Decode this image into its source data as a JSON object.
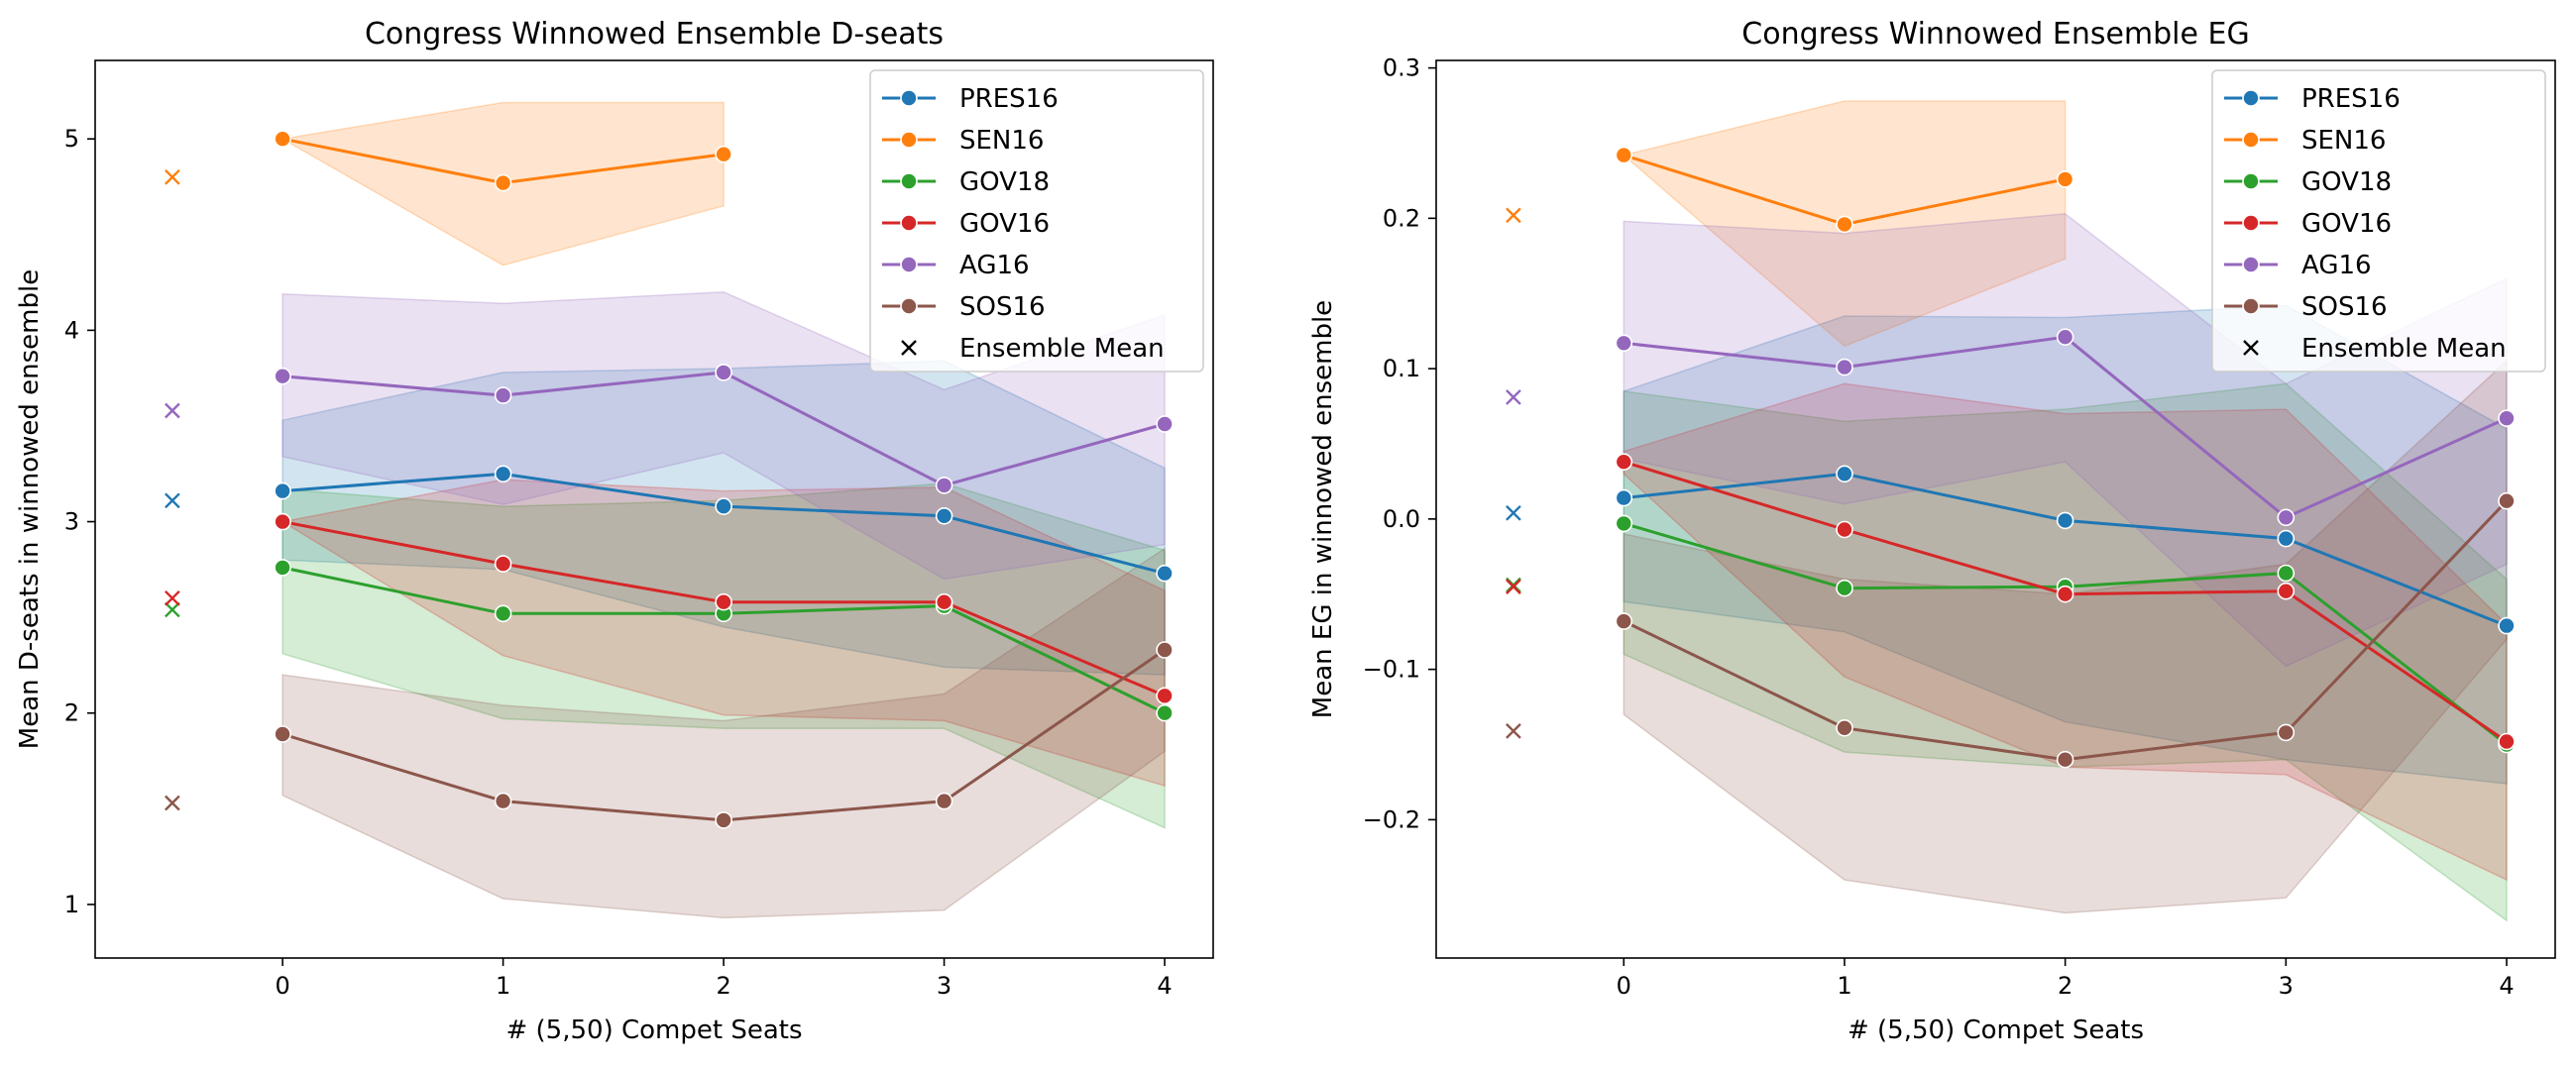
{
  "chart_data": [
    {
      "type": "line",
      "title": "Congress Winnowed Ensemble D-seats",
      "xlabel": "# (5,50) Compet Seats",
      "ylabel": "Mean D-seats in winnowed ensemble",
      "x": [
        0,
        1,
        2,
        3,
        4
      ],
      "xlim": [
        -0.85,
        4.22
      ],
      "ylim": [
        0.72,
        5.41
      ],
      "xticks": [
        0,
        1,
        2,
        3,
        4
      ],
      "yticks": [
        1,
        2,
        3,
        4,
        5
      ],
      "legend_position": "top-right",
      "legend_ensemble_label": "Ensemble Mean",
      "ensemble_x": -0.5,
      "series": [
        {
          "name": "PRES16",
          "color": "#1f77b4",
          "x": [
            0,
            1,
            2,
            3,
            4
          ],
          "values": [
            3.16,
            3.25,
            3.08,
            3.03,
            2.73
          ],
          "band_upper": [
            3.53,
            3.78,
            3.8,
            3.84,
            3.28
          ],
          "band_lower": [
            2.8,
            2.75,
            2.45,
            2.24,
            2.2
          ],
          "ensemble_mean": 3.11
        },
        {
          "name": "SEN16",
          "color": "#ff7f0e",
          "x": [
            0,
            1,
            2
          ],
          "values": [
            5.0,
            4.77,
            4.92
          ],
          "band_upper": [
            5.0,
            5.19,
            5.19
          ],
          "band_lower": [
            5.0,
            4.34,
            4.65
          ],
          "ensemble_mean": 4.8
        },
        {
          "name": "GOV18",
          "color": "#2ca02c",
          "x": [
            0,
            1,
            2,
            3,
            4
          ],
          "values": [
            2.76,
            2.52,
            2.52,
            2.56,
            2.0
          ],
          "band_upper": [
            3.17,
            3.08,
            3.11,
            3.2,
            2.85
          ],
          "band_lower": [
            2.31,
            1.97,
            1.92,
            1.92,
            1.4
          ],
          "ensemble_mean": 2.54
        },
        {
          "name": "GOV16",
          "color": "#d62728",
          "x": [
            0,
            1,
            2,
            3,
            4
          ],
          "values": [
            3.0,
            2.78,
            2.58,
            2.58,
            2.09
          ],
          "band_upper": [
            3.0,
            3.22,
            3.16,
            3.18,
            2.64
          ],
          "band_lower": [
            3.0,
            2.3,
            1.99,
            1.96,
            1.62
          ],
          "ensemble_mean": 2.6
        },
        {
          "name": "AG16",
          "color": "#9467bd",
          "x": [
            0,
            1,
            2,
            3,
            4
          ],
          "values": [
            3.76,
            3.66,
            3.78,
            3.19,
            3.51
          ],
          "band_upper": [
            4.19,
            4.14,
            4.2,
            3.69,
            4.08
          ],
          "band_lower": [
            3.34,
            3.09,
            3.36,
            2.7,
            2.88
          ],
          "ensemble_mean": 3.58
        },
        {
          "name": "SOS16",
          "color": "#8c564b",
          "x": [
            0,
            1,
            2,
            3,
            4
          ],
          "values": [
            1.89,
            1.54,
            1.44,
            1.54,
            2.33
          ],
          "band_upper": [
            2.2,
            2.04,
            1.96,
            2.1,
            2.86
          ],
          "band_lower": [
            1.57,
            1.03,
            0.93,
            0.97,
            1.8
          ],
          "ensemble_mean": 1.53
        }
      ]
    },
    {
      "type": "line",
      "title": "Congress Winnowed Ensemble EG",
      "xlabel": "# (5,50) Compet Seats",
      "ylabel": "Mean EG in winnowed ensemble",
      "x": [
        0,
        1,
        2,
        3,
        4
      ],
      "xlim": [
        -0.85,
        4.22
      ],
      "ylim": [
        -0.292,
        0.305
      ],
      "xticks": [
        0,
        1,
        2,
        3,
        4
      ],
      "yticks": [
        -0.2,
        -0.1,
        0.0,
        0.1,
        0.2,
        0.3
      ],
      "ytick_labels": [
        "−0.2",
        "−0.1",
        "0.0",
        "0.1",
        "0.2",
        "0.3"
      ],
      "legend_position": "top-right",
      "legend_ensemble_label": "Ensemble Mean",
      "ensemble_x": -0.5,
      "series": [
        {
          "name": "PRES16",
          "color": "#1f77b4",
          "x": [
            0,
            1,
            2,
            3,
            4
          ],
          "values": [
            0.014,
            0.03,
            -0.001,
            -0.013,
            -0.071
          ],
          "band_upper": [
            0.085,
            0.135,
            0.134,
            0.142,
            0.06
          ],
          "band_lower": [
            -0.055,
            -0.075,
            -0.135,
            -0.16,
            -0.176
          ],
          "ensemble_mean": 0.004
        },
        {
          "name": "SEN16",
          "color": "#ff7f0e",
          "x": [
            0,
            1,
            2
          ],
          "values": [
            0.242,
            0.196,
            0.226
          ],
          "band_upper": [
            0.242,
            0.278,
            0.278
          ],
          "band_lower": [
            0.242,
            0.115,
            0.173
          ],
          "ensemble_mean": 0.202
        },
        {
          "name": "GOV18",
          "color": "#2ca02c",
          "x": [
            0,
            1,
            2,
            3,
            4
          ],
          "values": [
            -0.003,
            -0.046,
            -0.045,
            -0.036,
            -0.15
          ],
          "band_upper": [
            0.085,
            0.065,
            0.073,
            0.09,
            -0.04
          ],
          "band_lower": [
            -0.09,
            -0.155,
            -0.165,
            -0.16,
            -0.267
          ],
          "ensemble_mean": -0.044
        },
        {
          "name": "GOV16",
          "color": "#d62728",
          "x": [
            0,
            1,
            2,
            3,
            4
          ],
          "values": [
            0.038,
            -0.007,
            -0.05,
            -0.048,
            -0.148
          ],
          "band_upper": [
            0.045,
            0.09,
            0.07,
            0.073,
            -0.07
          ],
          "band_lower": [
            0.03,
            -0.105,
            -0.165,
            -0.17,
            -0.24
          ],
          "ensemble_mean": -0.045
        },
        {
          "name": "AG16",
          "color": "#9467bd",
          "x": [
            0,
            1,
            2,
            3,
            4
          ],
          "values": [
            0.117,
            0.101,
            0.121,
            0.001,
            0.067
          ],
          "band_upper": [
            0.198,
            0.19,
            0.203,
            0.09,
            0.16
          ],
          "band_lower": [
            0.04,
            0.01,
            0.038,
            -0.098,
            -0.03
          ],
          "ensemble_mean": 0.081
        },
        {
          "name": "SOS16",
          "color": "#8c564b",
          "x": [
            0,
            1,
            2,
            3,
            4
          ],
          "values": [
            -0.068,
            -0.139,
            -0.16,
            -0.142,
            0.012
          ],
          "band_upper": [
            -0.01,
            -0.04,
            -0.05,
            -0.03,
            0.105
          ],
          "band_lower": [
            -0.13,
            -0.24,
            -0.262,
            -0.252,
            -0.08
          ],
          "ensemble_mean": -0.141
        }
      ]
    }
  ]
}
